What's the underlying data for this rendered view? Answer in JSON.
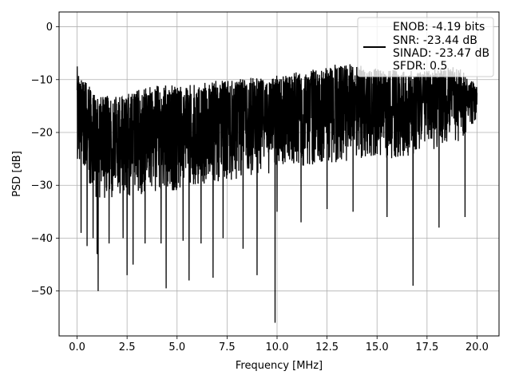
{
  "chart_data": {
    "type": "line",
    "title": "",
    "xlabel": "Frequency [MHz]",
    "ylabel": "PSD [dB]",
    "xlim": [
      -0.9,
      21.1
    ],
    "ylim": [
      -58.5,
      2.8
    ],
    "xticks": [
      0.0,
      2.5,
      5.0,
      7.5,
      10.0,
      12.5,
      15.0,
      17.5,
      20.0
    ],
    "xtick_labels": [
      "0.0",
      "2.5",
      "5.0",
      "7.5",
      "10.0",
      "12.5",
      "15.0",
      "17.5",
      "20.0"
    ],
    "yticks": [
      0,
      -10,
      -20,
      -30,
      -40,
      -50
    ],
    "ytick_labels": [
      "0",
      "−10",
      "−20",
      "−30",
      "−40",
      "−50"
    ],
    "grid": true,
    "legend_position": "top-right",
    "legend": [
      "ENOB: -4.19 bits",
      "SNR: -23.44 dB",
      "SINAD: -23.47 dB",
      "SFDR: 0.5"
    ],
    "series": [
      {
        "color": "#000000",
        "x_range": [
          0,
          20
        ],
        "upper_envelope": [
          [
            0,
            -8
          ],
          [
            1,
            -13
          ],
          [
            2,
            -13
          ],
          [
            3,
            -12
          ],
          [
            4,
            -11
          ],
          [
            5,
            -11
          ],
          [
            6,
            -11
          ],
          [
            7,
            -10
          ],
          [
            8,
            -10
          ],
          [
            9,
            -9.5
          ],
          [
            10,
            -9
          ],
          [
            11,
            -8.5
          ],
          [
            12,
            -8
          ],
          [
            13,
            -7
          ],
          [
            14,
            -7
          ],
          [
            15,
            -8
          ],
          [
            16,
            -8
          ],
          [
            17,
            -8.5
          ],
          [
            18,
            -8
          ],
          [
            19,
            -7.5
          ],
          [
            20,
            -12
          ]
        ],
        "lower_envelope": [
          [
            0,
            -25
          ],
          [
            1,
            -33
          ],
          [
            2,
            -32
          ],
          [
            3,
            -32
          ],
          [
            4,
            -31
          ],
          [
            5,
            -31
          ],
          [
            6,
            -30
          ],
          [
            7,
            -30
          ],
          [
            8,
            -29
          ],
          [
            9,
            -28
          ],
          [
            10,
            -28
          ],
          [
            11,
            -27
          ],
          [
            12,
            -26
          ],
          [
            13,
            -26
          ],
          [
            14,
            -25
          ],
          [
            15,
            -25
          ],
          [
            16,
            -25
          ],
          [
            17,
            -24
          ],
          [
            18,
            -23
          ],
          [
            19,
            -22
          ],
          [
            20,
            -18
          ]
        ],
        "dips": [
          [
            0.2,
            -39
          ],
          [
            0.5,
            -41.5
          ],
          [
            0.8,
            -40
          ],
          [
            1.0,
            -43
          ],
          [
            1.05,
            -50
          ],
          [
            1.6,
            -41
          ],
          [
            2.3,
            -40
          ],
          [
            2.5,
            -47
          ],
          [
            2.8,
            -45
          ],
          [
            3.4,
            -41
          ],
          [
            4.2,
            -41
          ],
          [
            4.45,
            -49.5
          ],
          [
            5.3,
            -40.5
          ],
          [
            5.6,
            -48
          ],
          [
            6.2,
            -41
          ],
          [
            6.8,
            -47.5
          ],
          [
            7.3,
            -40
          ],
          [
            8.3,
            -42
          ],
          [
            9.0,
            -47
          ],
          [
            9.9,
            -56
          ],
          [
            10.0,
            -35
          ],
          [
            11.2,
            -37
          ],
          [
            12.5,
            -34.5
          ],
          [
            13.8,
            -35
          ],
          [
            15.5,
            -36
          ],
          [
            16.8,
            -49
          ],
          [
            18.1,
            -38
          ],
          [
            19.4,
            -36
          ]
        ]
      }
    ]
  }
}
